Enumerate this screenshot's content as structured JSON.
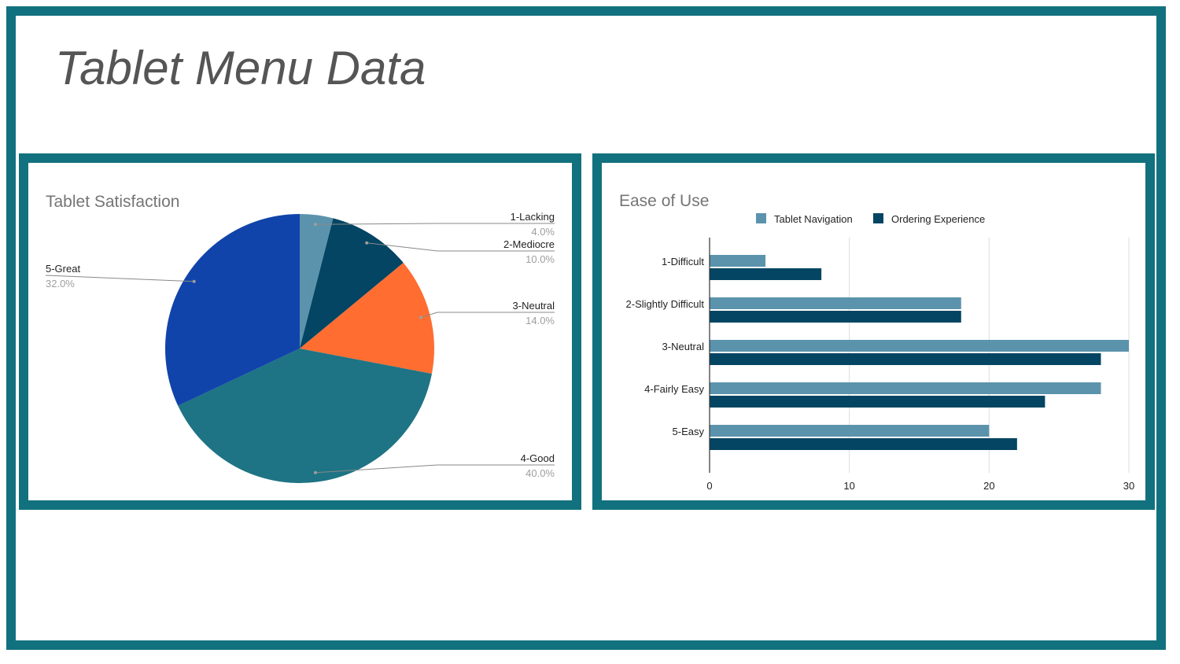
{
  "slide": {
    "title": "Tablet Menu Data",
    "frame_color": "#12717e"
  },
  "chart_data": [
    {
      "type": "pie",
      "title": "Tablet Satisfaction",
      "slices": [
        {
          "label": "1-Lacking",
          "value": 4.0,
          "pct_label": "4.0%",
          "color": "#5b93ad"
        },
        {
          "label": "2-Mediocre",
          "value": 10.0,
          "pct_label": "10.0%",
          "color": "#034563"
        },
        {
          "label": "3-Neutral",
          "value": 14.0,
          "pct_label": "14.0%",
          "color": "#ff6d31"
        },
        {
          "label": "4-Good",
          "value": 40.0,
          "pct_label": "40.0%",
          "color": "#1e7484"
        },
        {
          "label": "5-Great",
          "value": 32.0,
          "pct_label": "32.0%",
          "color": "#1144aa"
        }
      ]
    },
    {
      "type": "bar",
      "orientation": "horizontal",
      "title": "Ease of Use",
      "categories": [
        "1-Difficult",
        "2-Slightly Difficult",
        "3-Neutral",
        "4-Fairly Easy",
        "5-Easy"
      ],
      "series": [
        {
          "name": "Tablet Navigation",
          "values": [
            4,
            18,
            30,
            28,
            20
          ],
          "color": "#5b93ad"
        },
        {
          "name": "Ordering Experience",
          "values": [
            8,
            18,
            28,
            24,
            22
          ],
          "color": "#034563"
        }
      ],
      "xlim": [
        0,
        30
      ],
      "xticks": [
        0,
        10,
        20,
        30
      ],
      "grid": true,
      "legend": "top"
    }
  ]
}
